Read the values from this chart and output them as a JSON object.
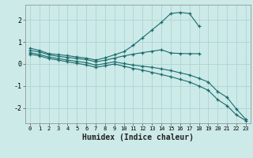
{
  "xlabel": "Humidex (Indice chaleur)",
  "bg_color": "#cceae8",
  "grid_color": "#aed4d2",
  "line_color": "#1a6b6b",
  "xlim": [
    -0.5,
    23.5
  ],
  "ylim": [
    -2.7,
    2.7
  ],
  "yticks": [
    -2,
    -1,
    0,
    1,
    2
  ],
  "xticks": [
    0,
    1,
    2,
    3,
    4,
    5,
    6,
    7,
    8,
    9,
    10,
    11,
    12,
    13,
    14,
    15,
    16,
    17,
    18,
    19,
    20,
    21,
    22,
    23
  ],
  "line1_x": [
    0,
    1,
    2,
    3,
    4,
    5,
    6,
    7,
    8,
    9,
    10,
    11,
    12,
    13,
    14,
    15,
    16,
    17,
    18
  ],
  "line1_y": [
    0.72,
    0.62,
    0.47,
    0.43,
    0.38,
    0.32,
    0.27,
    0.18,
    0.28,
    0.42,
    0.56,
    0.85,
    1.2,
    1.55,
    1.9,
    2.3,
    2.35,
    2.3,
    1.72
  ],
  "line2_x": [
    0,
    1,
    2,
    3,
    4,
    5,
    6,
    7,
    8,
    9,
    10,
    11,
    12,
    13,
    14,
    15,
    16,
    17,
    18
  ],
  "line2_y": [
    0.62,
    0.55,
    0.42,
    0.35,
    0.3,
    0.25,
    0.2,
    0.1,
    0.17,
    0.27,
    0.37,
    0.45,
    0.52,
    0.58,
    0.65,
    0.5,
    0.48,
    0.47,
    0.47
  ],
  "line3_x": [
    0,
    1,
    2,
    3,
    4,
    5,
    6,
    7,
    8,
    9,
    10,
    11,
    12,
    13,
    14,
    15,
    16,
    17,
    18,
    19,
    20,
    21,
    22,
    23
  ],
  "line3_y": [
    0.52,
    0.43,
    0.32,
    0.25,
    0.18,
    0.12,
    0.06,
    -0.05,
    0.02,
    0.1,
    0.02,
    -0.05,
    -0.1,
    -0.15,
    -0.22,
    -0.3,
    -0.4,
    -0.5,
    -0.65,
    -0.82,
    -1.25,
    -1.52,
    -2.05,
    -2.52
  ],
  "line4_x": [
    0,
    1,
    2,
    3,
    4,
    5,
    6,
    7,
    8,
    9,
    10,
    11,
    12,
    13,
    14,
    15,
    16,
    17,
    18,
    19,
    20,
    21,
    22,
    23
  ],
  "line4_y": [
    0.45,
    0.37,
    0.25,
    0.18,
    0.1,
    0.03,
    -0.04,
    -0.15,
    -0.08,
    0.0,
    -0.1,
    -0.2,
    -0.28,
    -0.38,
    -0.48,
    -0.58,
    -0.7,
    -0.82,
    -1.0,
    -1.2,
    -1.62,
    -1.9,
    -2.32,
    -2.58
  ]
}
